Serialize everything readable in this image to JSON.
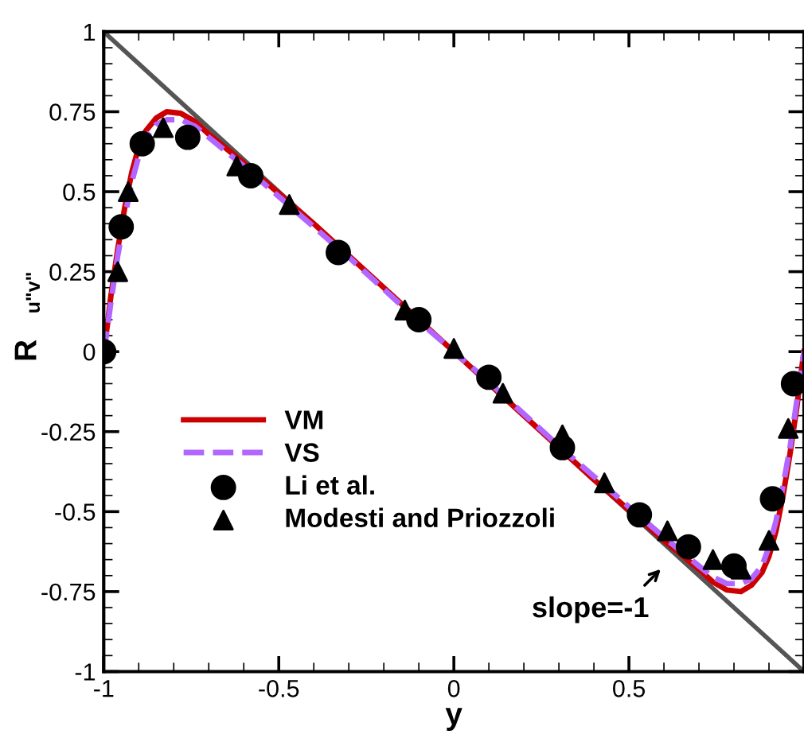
{
  "chart_data": {
    "type": "line",
    "xlabel": "y",
    "ylabel": "R$_{u\"v\"}$",
    "xlim": [
      -1,
      1
    ],
    "ylim": [
      -1,
      1
    ],
    "xticks": [
      -1,
      -0.5,
      0,
      0.5
    ],
    "yticks": [
      -1,
      -0.75,
      -0.5,
      -0.25,
      0,
      0.25,
      0.5,
      0.75,
      1
    ],
    "grid": false,
    "legend": "bottom left",
    "annotations": [
      "slope=-1"
    ],
    "series": [
      {
        "type": "line",
        "color": "#555555",
        "line_style": "solid",
        "x": [
          -1,
          1
        ],
        "values": [
          1,
          -1
        ]
      },
      {
        "name": "VM",
        "color": "#cc0000",
        "line_style": "solid",
        "x": [
          -1,
          -0.99,
          -0.98,
          -0.96,
          -0.94,
          -0.92,
          -0.9,
          -0.88,
          -0.85,
          -0.82,
          -0.78,
          -0.74,
          -0.7,
          -0.65,
          -0.6,
          -0.5,
          -0.4,
          -0.3,
          -0.2,
          -0.1,
          0,
          0.1,
          0.2,
          0.3,
          0.4,
          0.5,
          0.6,
          0.65,
          0.7,
          0.74,
          0.78,
          0.82,
          0.85,
          0.88,
          0.9,
          0.92,
          0.94,
          0.96,
          0.98,
          0.99,
          1
        ],
        "values": [
          0,
          0.08,
          0.17,
          0.32,
          0.45,
          0.56,
          0.64,
          0.69,
          0.73,
          0.75,
          0.745,
          0.72,
          0.68,
          0.635,
          0.59,
          0.495,
          0.4,
          0.3,
          0.2,
          0.1,
          0,
          -0.1,
          -0.2,
          -0.3,
          -0.4,
          -0.495,
          -0.59,
          -0.635,
          -0.68,
          -0.72,
          -0.745,
          -0.75,
          -0.73,
          -0.69,
          -0.64,
          -0.56,
          -0.45,
          -0.32,
          -0.17,
          -0.08,
          0
        ]
      },
      {
        "name": "VS",
        "color": "#b266ff",
        "line_style": "dashed",
        "x": [
          -1,
          -0.99,
          -0.98,
          -0.96,
          -0.94,
          -0.92,
          -0.9,
          -0.88,
          -0.85,
          -0.82,
          -0.78,
          -0.74,
          -0.7,
          -0.65,
          -0.6,
          -0.5,
          -0.4,
          -0.3,
          -0.2,
          -0.1,
          0,
          0.1,
          0.2,
          0.3,
          0.4,
          0.5,
          0.6,
          0.65,
          0.7,
          0.74,
          0.78,
          0.82,
          0.85,
          0.88,
          0.9,
          0.92,
          0.94,
          0.96,
          0.98,
          0.99,
          1
        ],
        "values": [
          0,
          0.07,
          0.15,
          0.3,
          0.42,
          0.53,
          0.61,
          0.67,
          0.71,
          0.725,
          0.725,
          0.705,
          0.67,
          0.625,
          0.58,
          0.485,
          0.39,
          0.295,
          0.195,
          0.095,
          0,
          -0.095,
          -0.195,
          -0.295,
          -0.39,
          -0.485,
          -0.58,
          -0.625,
          -0.67,
          -0.705,
          -0.725,
          -0.725,
          -0.71,
          -0.67,
          -0.61,
          -0.53,
          -0.42,
          -0.3,
          -0.15,
          -0.07,
          0
        ]
      },
      {
        "name": "Li et al.",
        "type": "scatter",
        "color": "#000000",
        "marker": "circle",
        "x": [
          -1,
          -0.95,
          -0.89,
          -0.76,
          -0.58,
          -0.33,
          -0.1,
          0.1,
          0.31,
          0.53,
          0.67,
          0.8,
          0.91,
          0.97
        ],
        "values": [
          0,
          0.39,
          0.65,
          0.67,
          0.55,
          0.31,
          0.1,
          -0.08,
          -0.3,
          -0.51,
          -0.61,
          -0.67,
          -0.46,
          -0.1
        ]
      },
      {
        "name": "Modesti and Priozzoli",
        "type": "scatter",
        "color": "#000000",
        "marker": "triangle",
        "x": [
          -0.96,
          -0.93,
          -0.83,
          -0.62,
          -0.47,
          -0.14,
          0,
          0.14,
          0.31,
          0.43,
          0.61,
          0.74,
          0.82,
          0.9,
          0.955
        ],
        "values": [
          0.25,
          0.5,
          0.7,
          0.58,
          0.46,
          0.13,
          0.01,
          -0.13,
          -0.26,
          -0.41,
          -0.56,
          -0.65,
          -0.68,
          -0.59,
          -0.24
        ]
      }
    ]
  }
}
